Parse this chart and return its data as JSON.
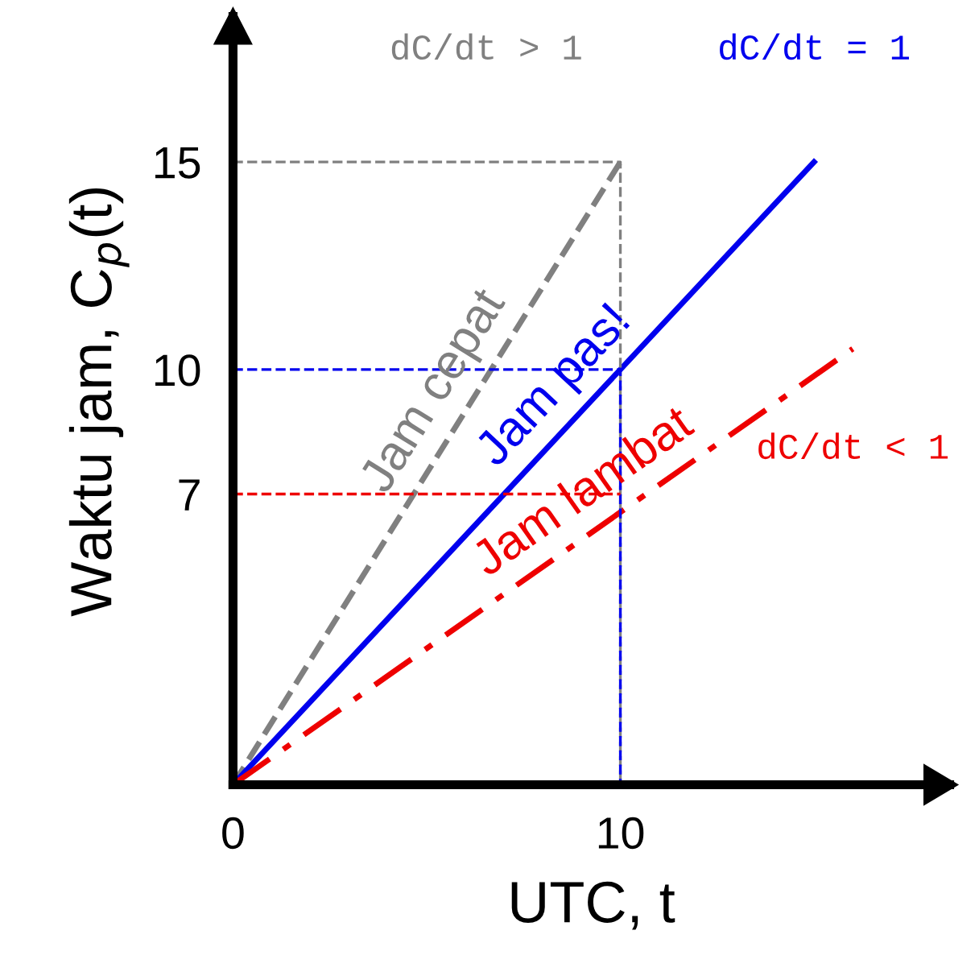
{
  "chart_data": {
    "type": "line",
    "xlabel": "UTC, t",
    "ylabel": "Waktu jam, C$_{p}$(t)",
    "xlim": [
      0,
      18.5
    ],
    "ylim": [
      0,
      18.5
    ],
    "xticks": [
      0,
      10
    ],
    "yticks": [
      7,
      10,
      15
    ],
    "grid": false,
    "legend": false,
    "marker": "none",
    "series": [
      {
        "name": "Jam cepat",
        "color": "#808080",
        "line_style": "dashed",
        "x": [
          0,
          10
        ],
        "values": [
          0,
          15
        ]
      },
      {
        "name": "Jam pas!",
        "color": "#0000ee",
        "line_style": "solid",
        "x": [
          0,
          15
        ],
        "values": [
          0,
          15
        ]
      },
      {
        "name": "Jam lambat",
        "color": "#ee0000",
        "line_style": "dashdot",
        "x": [
          0,
          16
        ],
        "values": [
          0,
          10.5
        ]
      },
      {
        "color": "#808080",
        "line_style": "dashed",
        "x": [
          0,
          10,
          10
        ],
        "values": [
          15,
          15,
          0
        ]
      },
      {
        "color": "#0000ee",
        "line_style": "dashed",
        "x": [
          0,
          10,
          10
        ],
        "values": [
          10,
          10,
          0
        ]
      },
      {
        "color": "#ee0000",
        "line_style": "dashed",
        "x": [
          0,
          10
        ],
        "values": [
          7,
          7
        ]
      }
    ],
    "annotations": [
      "dC/dt > 1",
      "dC/dt = 1",
      "dC/dt < 1"
    ]
  }
}
